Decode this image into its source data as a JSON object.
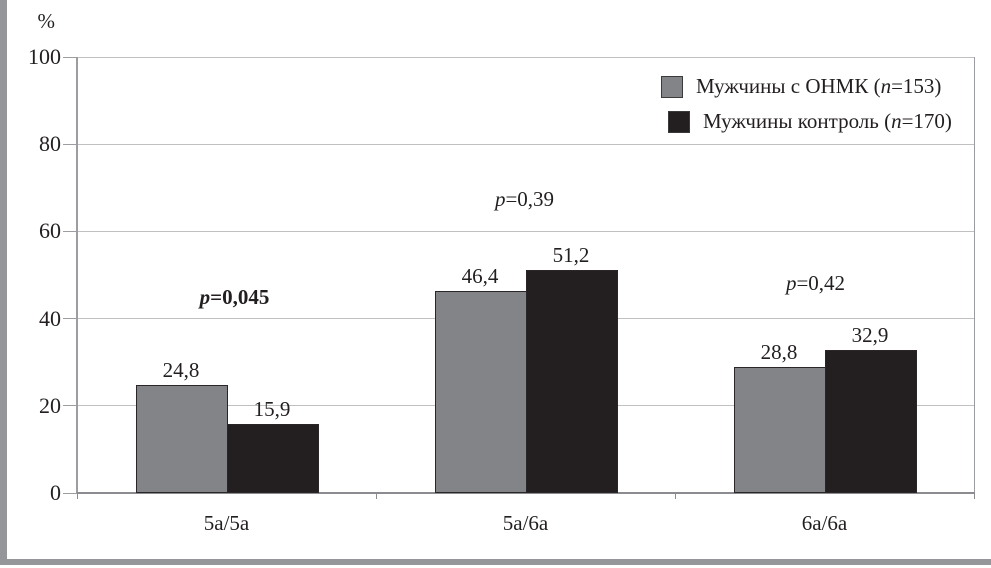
{
  "chart_data": {
    "type": "bar",
    "title": "",
    "ylabel": "%",
    "xlabel": "",
    "ylim": [
      0,
      100
    ],
    "yticks": [
      0,
      20,
      40,
      60,
      80,
      100
    ],
    "grid": true,
    "legend_position": "top-right",
    "categories": [
      "5а/5а",
      "5а/6а",
      "6а/6а"
    ],
    "series": [
      {
        "name": "Мужчины с ОНМК (n=153)",
        "color": "#828487",
        "values": [
          24.8,
          46.4,
          28.8
        ],
        "value_labels": [
          "24,8",
          "46,4",
          "28,8"
        ]
      },
      {
        "name": "Мужчины контроль (n=170)",
        "color": "#231f20",
        "values": [
          15.9,
          51.2,
          32.9
        ],
        "value_labels": [
          "15,9",
          "51,2",
          "32,9"
        ]
      }
    ],
    "p_values": [
      {
        "label": "p=0,045",
        "bold": true
      },
      {
        "label": "p=0,39",
        "bold": false
      },
      {
        "label": "p=0,42",
        "bold": false
      }
    ],
    "legend": {
      "items": [
        {
          "prefix": "Мужчины с ОНМК (",
          "italic": "n",
          "suffix": "=153)",
          "color": "#828487"
        },
        {
          "prefix": "Мужчины контроль (",
          "italic": "n",
          "suffix": "=170)",
          "color": "#231f20"
        }
      ]
    }
  }
}
